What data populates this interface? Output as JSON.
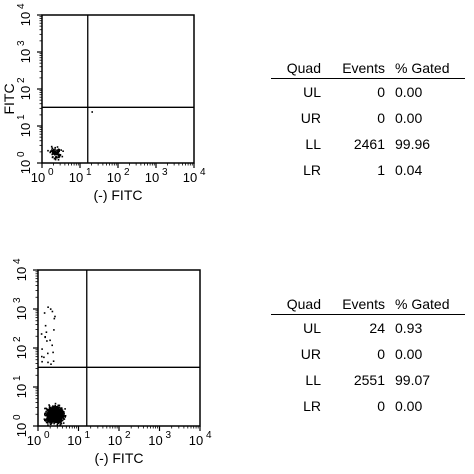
{
  "chart_data": [
    {
      "type": "scatter",
      "xlabel": "(-) FITC",
      "ylabel": "FITC",
      "x_scale": "log",
      "y_scale": "log",
      "xlim": [
        1,
        10000
      ],
      "ylim": [
        1,
        10000
      ],
      "x_ticks": [
        "10",
        "10",
        "10",
        "10",
        "10"
      ],
      "x_tick_exponents": [
        "0",
        "1",
        "2",
        "3",
        "4"
      ],
      "y_ticks": [
        "10",
        "10",
        "10",
        "10",
        "10"
      ],
      "y_tick_exponents": [
        "0",
        "1",
        "2",
        "3",
        "4"
      ],
      "quadrant_gate": {
        "x": 16,
        "y": 32
      },
      "table": {
        "headers": [
          "Quad",
          "Events",
          "% Gated"
        ],
        "rows": [
          {
            "quad": "UL",
            "events": "0",
            "pct": "0.00"
          },
          {
            "quad": "UR",
            "events": "0",
            "pct": "0.00"
          },
          {
            "quad": "LL",
            "events": "2461",
            "pct": "99.96"
          },
          {
            "quad": "LR",
            "events": "1",
            "pct": "0.04"
          }
        ]
      }
    },
    {
      "type": "scatter",
      "xlabel": "(-) FITC",
      "ylabel": "",
      "x_scale": "log",
      "y_scale": "log",
      "xlim": [
        1,
        10000
      ],
      "ylim": [
        1,
        10000
      ],
      "x_ticks": [
        "10",
        "10",
        "10",
        "10",
        "10"
      ],
      "x_tick_exponents": [
        "0",
        "1",
        "2",
        "3",
        "4"
      ],
      "y_ticks": [
        "10",
        "10",
        "10",
        "10",
        "10"
      ],
      "y_tick_exponents": [
        "0",
        "1",
        "2",
        "3",
        "4"
      ],
      "quadrant_gate": {
        "x": 16,
        "y": 32
      },
      "table": {
        "headers": [
          "Quad",
          "Events",
          "% Gated"
        ],
        "rows": [
          {
            "quad": "UL",
            "events": "24",
            "pct": "0.93"
          },
          {
            "quad": "UR",
            "events": "0",
            "pct": "0.00"
          },
          {
            "quad": "LL",
            "events": "2551",
            "pct": "99.07"
          },
          {
            "quad": "LR",
            "events": "0",
            "pct": "0.00"
          }
        ]
      }
    }
  ]
}
